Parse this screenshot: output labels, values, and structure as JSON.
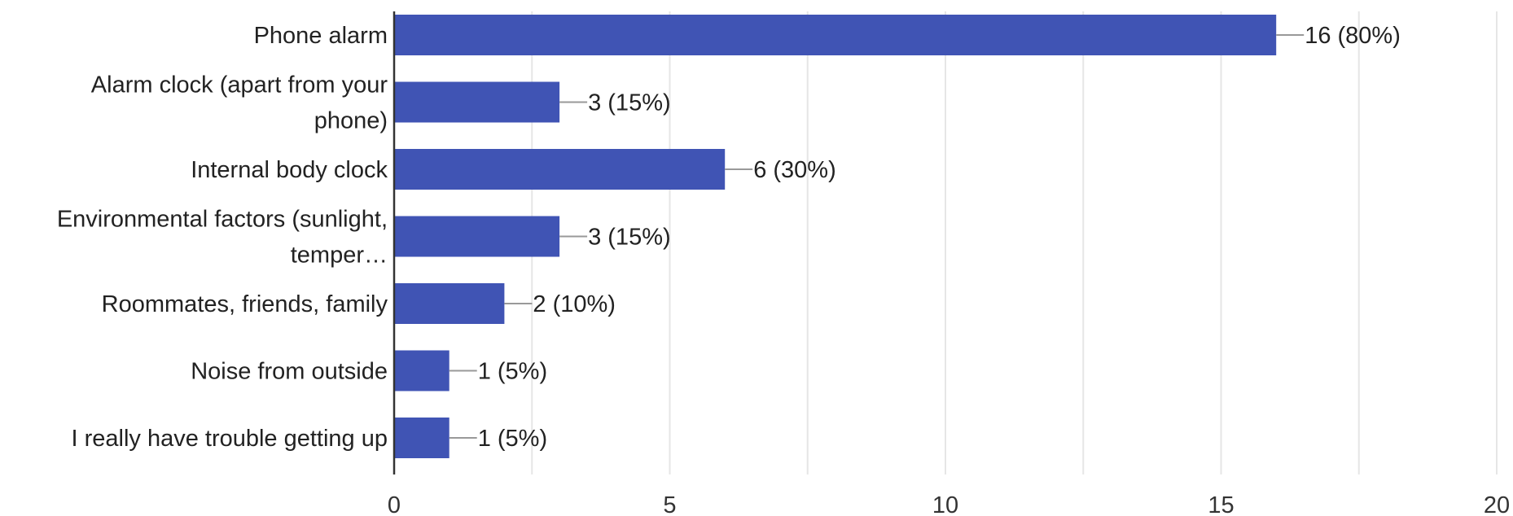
{
  "chart_data": {
    "type": "bar",
    "orientation": "horizontal",
    "categories": [
      [
        "Phone alarm"
      ],
      [
        "Alarm clock (apart from your",
        "phone)"
      ],
      [
        "Internal body clock"
      ],
      [
        "Environmental factors (sunlight,",
        "temper…"
      ],
      [
        "Roommates, friends, family"
      ],
      [
        "Noise from outside"
      ],
      [
        "I really have trouble getting up"
      ]
    ],
    "values": [
      16,
      3,
      6,
      3,
      2,
      1,
      1
    ],
    "data_labels": [
      "16 (80%)",
      "3 (15%)",
      "6 (30%)",
      "3 (15%)",
      "2 (10%)",
      "1 (5%)",
      "1 (5%)"
    ],
    "xlim": [
      0,
      20
    ],
    "x_ticks": [
      0,
      5,
      10,
      15,
      20
    ],
    "x_tick_labels": [
      "0",
      "5",
      "10",
      "15",
      "20"
    ],
    "minor_grid_step": 2.5,
    "grid": true,
    "title": "",
    "xlabel": "",
    "ylabel": "",
    "colors": {
      "bar": "#4054b4",
      "grid": "#e6e6e6",
      "axis": "#333333",
      "leader": "#999999"
    }
  }
}
